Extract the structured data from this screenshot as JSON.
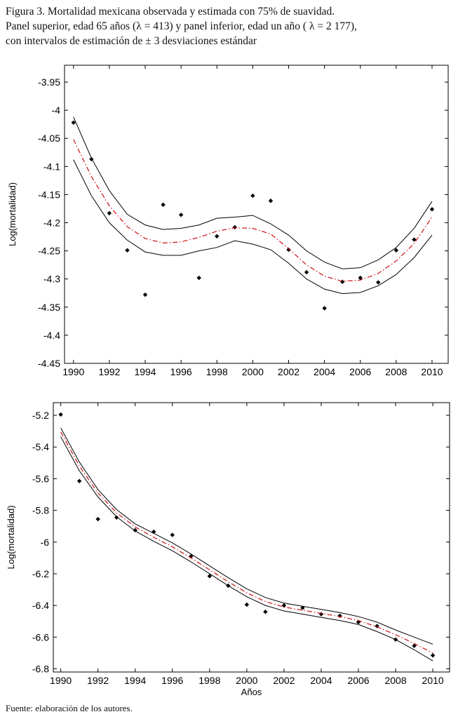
{
  "figure": {
    "caption_line1": "Figura 3. Mortalidad mexicana observada y estimada con 75% de suavidad.",
    "caption_line2": "Panel superior, edad 65 años (λ = 413) y panel inferior, edad un año ( λ = 2 177),",
    "caption_line3": "con intervalos de estimación de ± 3 desviaciones estándar",
    "source": "Fuente: elaboración de los autores."
  },
  "chart_data": [
    {
      "type": "line",
      "panel": "top",
      "title": "",
      "xlabel": "",
      "ylabel": "Log(mortalidad)",
      "xlim": [
        1989.5,
        2010.9
      ],
      "ylim": [
        -4.45,
        -3.92
      ],
      "x_ticks": [
        1990,
        1992,
        1994,
        1996,
        1998,
        2000,
        2002,
        2004,
        2006,
        2008,
        2010
      ],
      "y_ticks": [
        -3.95,
        -4,
        -4.05,
        -4.1,
        -4.15,
        -4.2,
        -4.25,
        -4.3,
        -4.35,
        -4.4,
        -4.45
      ],
      "y_tick_labels": [
        "-3.95",
        "-4",
        "-4.05",
        "-4.1",
        "-4.15",
        "-4.2",
        "-4.25",
        "-4.3",
        "-4.35",
        "-4.4",
        "-4.45"
      ],
      "grid": false,
      "legend": "none",
      "x": [
        1990,
        1991,
        1992,
        1993,
        1994,
        1995,
        1996,
        1997,
        1998,
        1999,
        2000,
        2001,
        2002,
        2003,
        2004,
        2005,
        2006,
        2007,
        2008,
        2009,
        2010
      ],
      "series": [
        {
          "role": "observed",
          "style": "points",
          "color": "#000000",
          "values": [
            -4.022,
            -4.087,
            -4.183,
            -4.249,
            -4.328,
            -4.168,
            -4.186,
            -4.298,
            -4.224,
            -4.208,
            -4.152,
            -4.161,
            -4.248,
            -4.288,
            -4.352,
            -4.305,
            -4.298,
            -4.306,
            -4.249,
            -4.23,
            -4.176
          ]
        },
        {
          "role": "estimate",
          "style": "dashdot",
          "color": "#cc1111",
          "values": [
            -4.052,
            -4.118,
            -4.17,
            -4.207,
            -4.228,
            -4.236,
            -4.234,
            -4.226,
            -4.215,
            -4.209,
            -4.21,
            -4.22,
            -4.246,
            -4.275,
            -4.295,
            -4.304,
            -4.302,
            -4.29,
            -4.268,
            -4.237,
            -4.19
          ]
        },
        {
          "role": "upper",
          "style": "solid",
          "color": "#000000",
          "values": [
            -4.012,
            -4.085,
            -4.143,
            -4.185,
            -4.204,
            -4.212,
            -4.21,
            -4.204,
            -4.192,
            -4.19,
            -4.187,
            -4.202,
            -4.222,
            -4.25,
            -4.27,
            -4.282,
            -4.28,
            -4.266,
            -4.244,
            -4.21,
            -4.162
          ]
        },
        {
          "role": "lower",
          "style": "solid",
          "color": "#000000",
          "values": [
            -4.088,
            -4.152,
            -4.2,
            -4.231,
            -4.252,
            -4.258,
            -4.258,
            -4.25,
            -4.244,
            -4.232,
            -4.238,
            -4.248,
            -4.272,
            -4.3,
            -4.318,
            -4.326,
            -4.324,
            -4.312,
            -4.292,
            -4.262,
            -4.222
          ]
        }
      ]
    },
    {
      "type": "line",
      "panel": "bottom",
      "title": "",
      "xlabel": "Años",
      "ylabel": "Log(mortalidad)",
      "xlim": [
        1989.6,
        2010.9
      ],
      "ylim": [
        -6.82,
        -5.12
      ],
      "x_ticks": [
        1990,
        1992,
        1994,
        1996,
        1998,
        2000,
        2002,
        2004,
        2006,
        2008,
        2010
      ],
      "y_ticks": [
        -5.2,
        -5.4,
        -5.6,
        -5.8,
        -6,
        -6.2,
        -6.4,
        -6.6,
        -6.8
      ],
      "y_tick_labels": [
        "-5.2",
        "-5.4",
        "-5.6",
        "-5.8",
        "-6",
        "-6.2",
        "-6.4",
        "-6.6",
        "-6.8"
      ],
      "grid": false,
      "legend": "none",
      "x": [
        1990,
        1991,
        1992,
        1993,
        1994,
        1995,
        1996,
        1997,
        1998,
        1999,
        2000,
        2001,
        2002,
        2003,
        2004,
        2005,
        2006,
        2007,
        2008,
        2009,
        2010
      ],
      "series": [
        {
          "role": "observed",
          "style": "points",
          "color": "#000000",
          "values": [
            -5.195,
            -5.615,
            -5.855,
            -5.845,
            -5.925,
            -5.935,
            -5.955,
            -6.09,
            -6.215,
            -6.275,
            -6.395,
            -6.44,
            -6.4,
            -6.415,
            -6.455,
            -6.465,
            -6.505,
            -6.53,
            -6.615,
            -6.655,
            -6.715
          ]
        },
        {
          "role": "estimate",
          "style": "dashdot",
          "color": "#cc1111",
          "values": [
            -5.305,
            -5.52,
            -5.69,
            -5.815,
            -5.905,
            -5.97,
            -6.03,
            -6.1,
            -6.175,
            -6.25,
            -6.32,
            -6.375,
            -6.41,
            -6.43,
            -6.45,
            -6.47,
            -6.495,
            -6.535,
            -6.585,
            -6.64,
            -6.7
          ]
        },
        {
          "role": "upper",
          "style": "solid",
          "color": "#000000",
          "values": [
            -5.28,
            -5.495,
            -5.668,
            -5.795,
            -5.885,
            -5.945,
            -6.005,
            -6.075,
            -6.15,
            -6.225,
            -6.295,
            -6.35,
            -6.385,
            -6.405,
            -6.425,
            -6.445,
            -6.47,
            -6.505,
            -6.555,
            -6.6,
            -6.645
          ]
        },
        {
          "role": "lower",
          "style": "solid",
          "color": "#000000",
          "values": [
            -5.335,
            -5.55,
            -5.715,
            -5.84,
            -5.93,
            -5.995,
            -6.055,
            -6.125,
            -6.2,
            -6.275,
            -6.345,
            -6.4,
            -6.435,
            -6.455,
            -6.475,
            -6.495,
            -6.52,
            -6.565,
            -6.615,
            -6.68,
            -6.75
          ]
        }
      ]
    }
  ]
}
